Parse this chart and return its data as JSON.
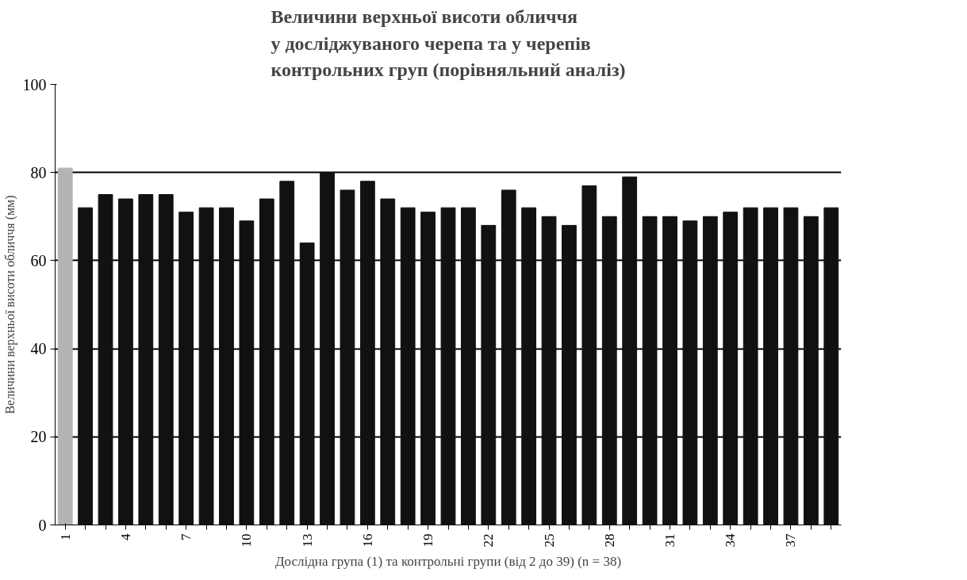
{
  "chart_data": {
    "type": "bar",
    "title": "Величини верхньої висоти обличчя\nу досліджуваного черепа та у черепів\nконтрольних груп (порівняльний аналіз)",
    "xlabel": "Дослідна група (1) та контрольні групи (від 2 до 39) (n = 38)",
    "ylabel": "Величини верхньої висоти обличчя (мм)",
    "categories": [
      "1",
      null,
      null,
      "4",
      null,
      null,
      "7",
      null,
      null,
      "10",
      null,
      null,
      "13",
      null,
      null,
      "16",
      null,
      null,
      "19",
      null,
      null,
      "22",
      null,
      null,
      "25",
      null,
      null,
      "28",
      null,
      null,
      "31",
      null,
      null,
      "34",
      null,
      null,
      "37",
      null,
      null
    ],
    "values": [
      81,
      72,
      75,
      74,
      75,
      75,
      71,
      72,
      72,
      69,
      74,
      78,
      64,
      80,
      76,
      78,
      74,
      72,
      71,
      72,
      72,
      68,
      76,
      72,
      70,
      68,
      77,
      70,
      79,
      70,
      70,
      69,
      70,
      71,
      72,
      72,
      72,
      70,
      72
    ],
    "colors": [
      "#b4b4b4",
      "#111111",
      "#111111",
      "#111111",
      "#111111",
      "#111111",
      "#111111",
      "#111111",
      "#111111",
      "#111111",
      "#111111",
      "#111111",
      "#111111",
      "#111111",
      "#111111",
      "#111111",
      "#111111",
      "#111111",
      "#111111",
      "#111111",
      "#111111",
      "#111111",
      "#111111",
      "#111111",
      "#111111",
      "#111111",
      "#111111",
      "#111111",
      "#111111",
      "#111111",
      "#111111",
      "#111111",
      "#111111",
      "#111111",
      "#111111",
      "#111111",
      "#111111",
      "#111111",
      "#111111"
    ],
    "ylim": [
      0,
      100
    ],
    "yticks": [
      0,
      20,
      40,
      60,
      80,
      100
    ],
    "grid": "y"
  }
}
